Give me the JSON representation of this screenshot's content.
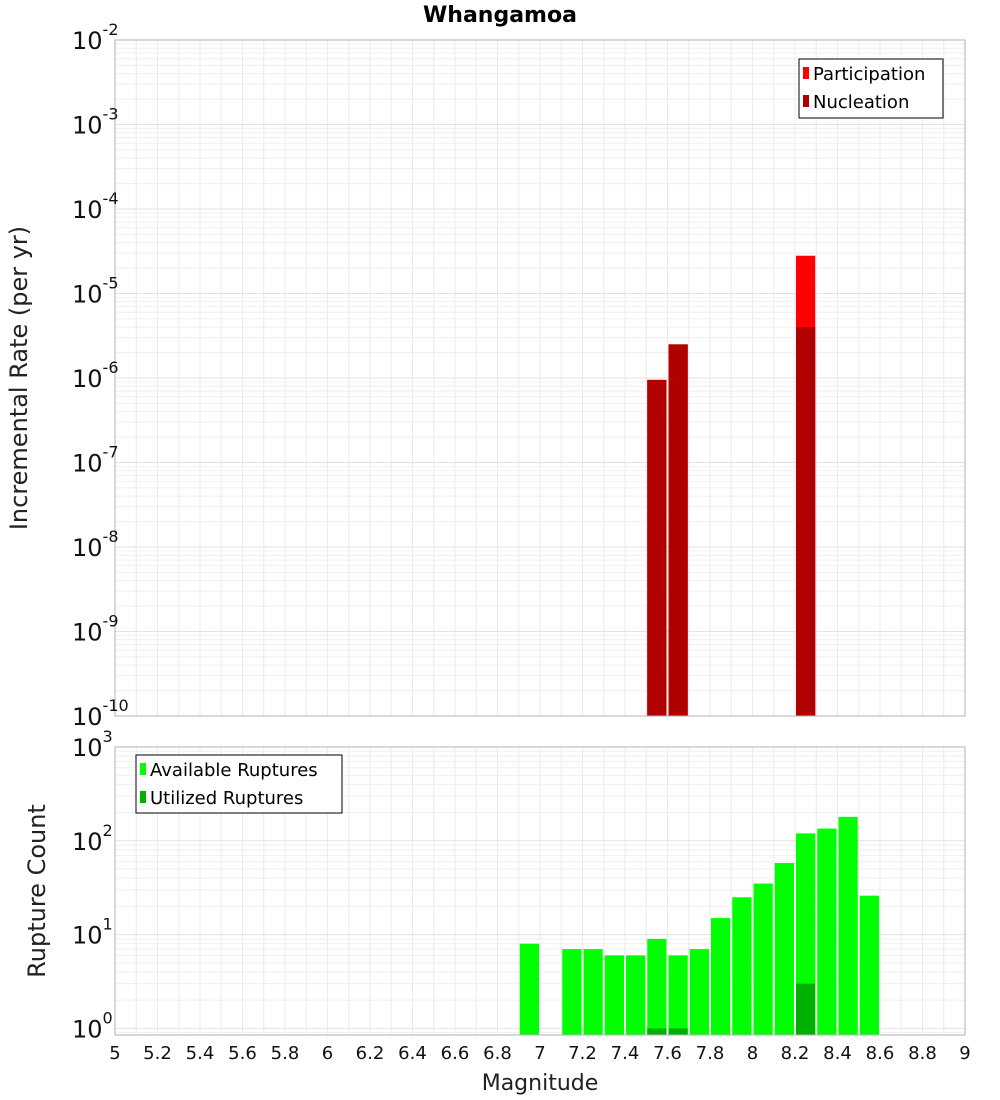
{
  "title": "Whangamoa",
  "xlabel": "Magnitude",
  "x_ticks": [
    "5",
    "5.2",
    "5.4",
    "5.6",
    "5.8",
    "6",
    "6.2",
    "6.4",
    "6.6",
    "6.8",
    "7",
    "7.2",
    "7.4",
    "7.6",
    "7.8",
    "8",
    "8.2",
    "8.4",
    "8.6",
    "8.8",
    "9"
  ],
  "chart_data": [
    {
      "type": "bar",
      "title": "Whangamoa",
      "ylabel": "Incremental Rate (per yr)",
      "y_scale": "log",
      "ylim": [
        1e-10,
        0.01
      ],
      "xlim": [
        5,
        9
      ],
      "y_ticks": [
        {
          "base": "10",
          "exp": "-10"
        },
        {
          "base": "10",
          "exp": "-9"
        },
        {
          "base": "10",
          "exp": "-8"
        },
        {
          "base": "10",
          "exp": "-7"
        },
        {
          "base": "10",
          "exp": "-6"
        },
        {
          "base": "10",
          "exp": "-5"
        },
        {
          "base": "10",
          "exp": "-4"
        },
        {
          "base": "10",
          "exp": "-3"
        },
        {
          "base": "10",
          "exp": "-2"
        }
      ],
      "legend_position": "top-right",
      "series": [
        {
          "name": "Participation",
          "color": "#ff0000",
          "points": [
            {
              "x": 7.55,
              "y": 9.5e-07
            },
            {
              "x": 7.65,
              "y": 2.5e-06
            },
            {
              "x": 8.25,
              "y": 2.8e-05
            }
          ]
        },
        {
          "name": "Nucleation",
          "color": "#b00000",
          "points": [
            {
              "x": 7.55,
              "y": 9.5e-07
            },
            {
              "x": 7.65,
              "y": 2.5e-06
            },
            {
              "x": 8.25,
              "y": 4e-06
            }
          ]
        }
      ]
    },
    {
      "type": "bar",
      "xlabel": "Magnitude",
      "ylabel": "Rupture Count",
      "y_scale": "log",
      "ylim": [
        0.85,
        1000
      ],
      "xlim": [
        5,
        9
      ],
      "y_ticks": [
        {
          "base": "10",
          "exp": "0"
        },
        {
          "base": "10",
          "exp": "1"
        },
        {
          "base": "10",
          "exp": "2"
        },
        {
          "base": "10",
          "exp": "3"
        }
      ],
      "legend_position": "top-left",
      "series": [
        {
          "name": "Available Ruptures",
          "color": "#00ff00",
          "points": [
            {
              "x": 6.95,
              "y": 8
            },
            {
              "x": 7.15,
              "y": 7
            },
            {
              "x": 7.25,
              "y": 7
            },
            {
              "x": 7.35,
              "y": 6
            },
            {
              "x": 7.45,
              "y": 6
            },
            {
              "x": 7.55,
              "y": 9
            },
            {
              "x": 7.65,
              "y": 6
            },
            {
              "x": 7.75,
              "y": 7
            },
            {
              "x": 7.85,
              "y": 15
            },
            {
              "x": 7.95,
              "y": 25
            },
            {
              "x": 8.05,
              "y": 35
            },
            {
              "x": 8.15,
              "y": 58
            },
            {
              "x": 8.25,
              "y": 120
            },
            {
              "x": 8.35,
              "y": 135
            },
            {
              "x": 8.45,
              "y": 180
            },
            {
              "x": 8.55,
              "y": 26
            }
          ]
        },
        {
          "name": "Utilized Ruptures",
          "color": "#00b000",
          "points": [
            {
              "x": 7.55,
              "y": 1
            },
            {
              "x": 7.65,
              "y": 1
            },
            {
              "x": 8.25,
              "y": 3
            }
          ]
        }
      ]
    }
  ]
}
